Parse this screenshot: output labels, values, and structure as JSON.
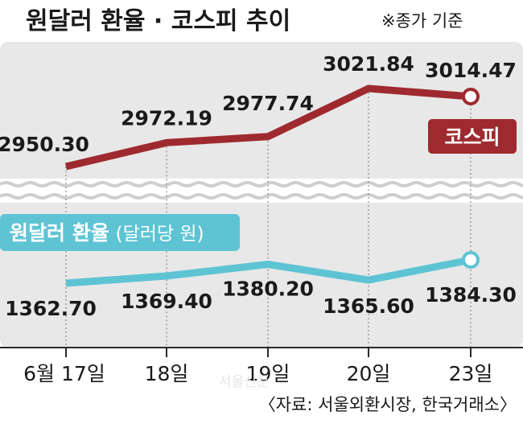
{
  "chart_data": {
    "type": "line",
    "title": "원달러 환율 · 코스피 추이",
    "note": "※종가 기준",
    "categories": [
      "6월 17일",
      "18일",
      "19일",
      "20일",
      "23일"
    ],
    "series": [
      {
        "name": "코스피",
        "values": [
          2950.3,
          2972.19,
          2977.74,
          3021.84,
          3014.47
        ],
        "labels": [
          "2950.30",
          "2972.19",
          "2977.74",
          "3021.84",
          "3014.47"
        ],
        "color": "#9e2a2f"
      },
      {
        "name": "원달러 환율",
        "unit_label": "(달러당 원)",
        "values": [
          1362.7,
          1369.4,
          1380.2,
          1365.6,
          1384.3
        ],
        "labels": [
          "1362.70",
          "1369.40",
          "1380.20",
          "1365.60",
          "1384.30"
        ],
        "color": "#5ec4d4"
      }
    ],
    "axis_break": true,
    "grid": "vertical dotted",
    "background_color": "#e8e8e8",
    "source": "〈자료: 서울외환시장, 한국거래소〉",
    "watermark": "서울신문"
  }
}
